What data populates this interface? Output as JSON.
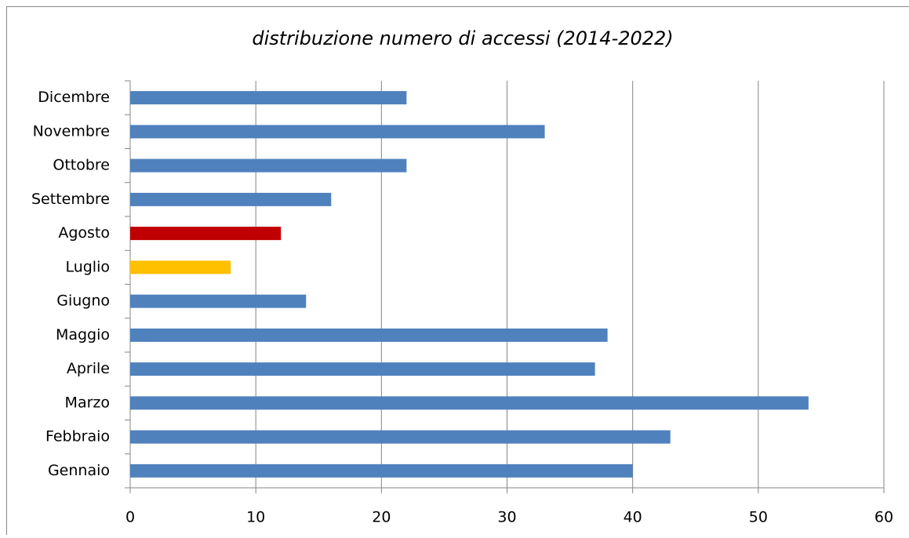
{
  "chart_data": {
    "type": "bar",
    "orientation": "horizontal",
    "title": "distribuzione numero di accessi (2014-2022)",
    "categories": [
      "Gennaio",
      "Febbraio",
      "Marzo",
      "Aprile",
      "Maggio",
      "Giugno",
      "Luglio",
      "Agosto",
      "Settembre",
      "Ottobre",
      "Novembre",
      "Dicembre"
    ],
    "values": [
      40,
      43,
      54,
      37,
      38,
      14,
      8,
      12,
      16,
      22,
      33,
      22
    ],
    "colors": [
      "#4f81bd",
      "#4f81bd",
      "#4f81bd",
      "#4f81bd",
      "#4f81bd",
      "#4f81bd",
      "#ffc000",
      "#c00000",
      "#4f81bd",
      "#4f81bd",
      "#4f81bd",
      "#4f81bd"
    ],
    "xlim": [
      0,
      60
    ],
    "xticks": [
      0,
      10,
      20,
      30,
      40,
      50,
      60
    ],
    "grid": true
  }
}
